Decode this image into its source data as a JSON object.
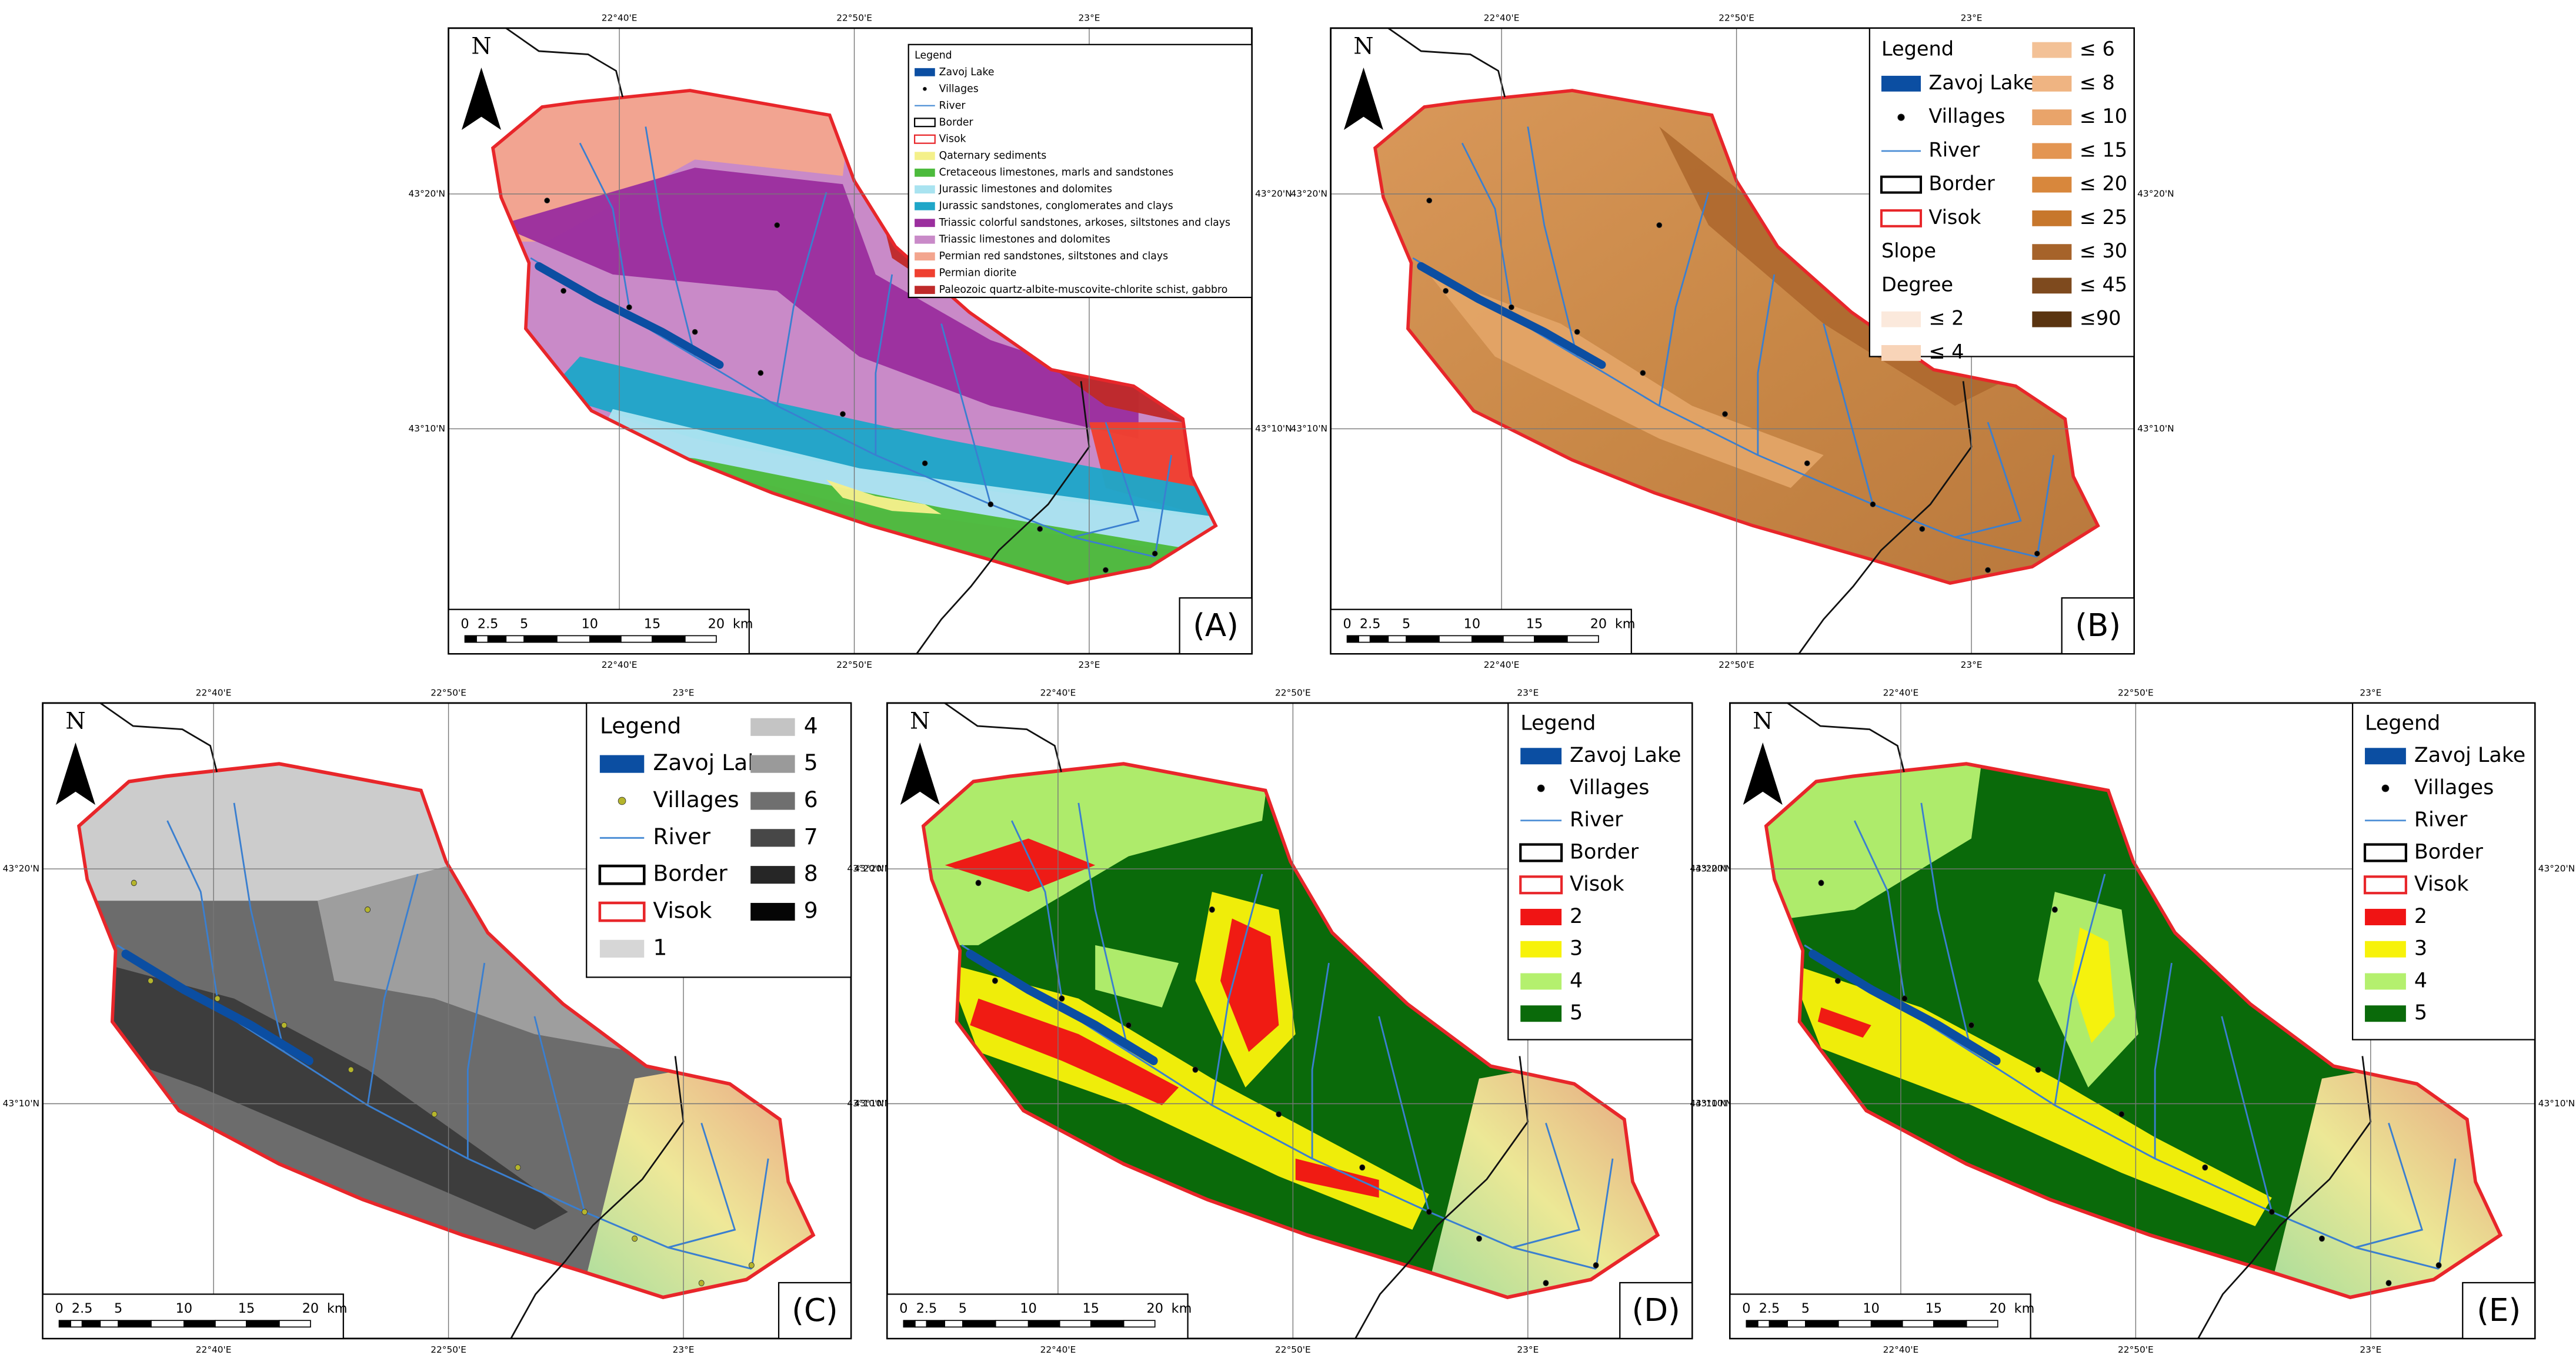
{
  "panels": [
    {
      "label": "(A)",
      "north": "N",
      "lon_labels": [
        "22°40'E",
        "22°50'E",
        "23°E"
      ],
      "lat_labels": [
        "43°20'N",
        "43°10'N"
      ],
      "scale": [
        "0",
        "2.5",
        "5",
        "10",
        "15",
        "20",
        "km"
      ],
      "legend": {
        "title": "Legend",
        "items": [
          {
            "label": "Zavoj Lake",
            "symbol": "fill",
            "color": "#0b4ea2"
          },
          {
            "label": "Villages",
            "symbol": "dot",
            "color": "#000000"
          },
          {
            "label": "River",
            "symbol": "line",
            "color": "#4d8fd6"
          },
          {
            "label": "Border",
            "symbol": "outline",
            "color": "#000000"
          },
          {
            "label": "Visok",
            "symbol": "outline",
            "color": "#e8262a"
          },
          {
            "label": "Qaternary sediments",
            "symbol": "fill",
            "color": "#f4f08a"
          },
          {
            "label": "Cretaceous limestones, marls and sandstones",
            "symbol": "fill",
            "color": "#4cbb3c"
          },
          {
            "label": "Jurassic limestones and dolomites",
            "symbol": "fill",
            "color": "#a9e3f0"
          },
          {
            "label": "Jurassic sandstones, conglomerates and clays",
            "symbol": "fill",
            "color": "#1fa6c8"
          },
          {
            "label": "Triassic colorful sandstones, arkoses, siltstones and clays",
            "symbol": "fill",
            "color": "#9b2f9e"
          },
          {
            "label": "Triassic limestones and dolomites",
            "symbol": "fill",
            "color": "#c98ac8"
          },
          {
            "label": "Permian red sandstones, siltstones and clays",
            "symbol": "fill",
            "color": "#f3a58e"
          },
          {
            "label": "Permian diorite",
            "symbol": "fill",
            "color": "#ef4030"
          },
          {
            "label": "Paleozoic quartz-albite-muscovite-chlorite schist, gabbro",
            "symbol": "fill",
            "color": "#bf2a2a"
          }
        ]
      }
    },
    {
      "label": "(B)",
      "north": "N",
      "lon_labels": [
        "22°40'E",
        "22°50'E",
        "23°E"
      ],
      "lat_labels": [
        "43°20'N",
        "43°10'N"
      ],
      "scale": [
        "0",
        "2.5",
        "5",
        "10",
        "15",
        "20",
        "km"
      ],
      "legend": {
        "title": "Legend",
        "items": [
          {
            "label": "Zavoj Lake",
            "symbol": "fill",
            "color": "#0b4ea2"
          },
          {
            "label": "Villages",
            "symbol": "dot",
            "color": "#000000"
          },
          {
            "label": "River",
            "symbol": "line",
            "color": "#4d8fd6"
          },
          {
            "label": "Border",
            "symbol": "outline",
            "color": "#000000"
          },
          {
            "label": "Visok",
            "symbol": "outline",
            "color": "#e8262a"
          },
          {
            "label": "Slope",
            "symbol": "none"
          },
          {
            "label": "Degree",
            "symbol": "none"
          },
          {
            "label": "≤ 2",
            "symbol": "fill",
            "color": "#fbe9dc"
          },
          {
            "label": "≤ 4",
            "symbol": "fill",
            "color": "#f8d4b8"
          },
          {
            "label": "≤ 6",
            "symbol": "fill",
            "color": "#f3c196"
          },
          {
            "label": "≤ 8",
            "symbol": "fill",
            "color": "#efb482"
          },
          {
            "label": "≤ 10",
            "symbol": "fill",
            "color": "#e9a46a"
          },
          {
            "label": "≤ 15",
            "symbol": "fill",
            "color": "#e39552"
          },
          {
            "label": "≤ 20",
            "symbol": "fill",
            "color": "#d8873c"
          },
          {
            "label": "≤ 25",
            "symbol": "fill",
            "color": "#c7772c"
          },
          {
            "label": "≤ 30",
            "symbol": "fill",
            "color": "#a6632a"
          },
          {
            "label": "≤ 45",
            "symbol": "fill",
            "color": "#7e4a1e"
          },
          {
            "label": "≤90",
            "symbol": "fill",
            "color": "#5a3410"
          }
        ]
      }
    },
    {
      "label": "(C)",
      "north": "N",
      "lon_labels": [
        "22°40'E",
        "22°50'E",
        "23°E"
      ],
      "lat_labels": [
        "43°20'N",
        "43°10'N"
      ],
      "scale": [
        "0",
        "2.5",
        "5",
        "10",
        "15",
        "20",
        "km"
      ],
      "legend": {
        "title": "Legend",
        "items": [
          {
            "label": "Zavoj Lake",
            "symbol": "fill",
            "color": "#0b4ea2"
          },
          {
            "label": "Villages",
            "symbol": "dot",
            "color": "#b5b52c"
          },
          {
            "label": "River",
            "symbol": "line",
            "color": "#4d8fd6"
          },
          {
            "label": "Border",
            "symbol": "outline",
            "color": "#000000"
          },
          {
            "label": "Visok",
            "symbol": "outline",
            "color": "#e8262a"
          },
          {
            "label": "1",
            "symbol": "fill",
            "color": "#d6d6d6"
          },
          {
            "label": "4",
            "symbol": "fill",
            "color": "#c4c4c4"
          },
          {
            "label": "5",
            "symbol": "fill",
            "color": "#9a9a9a"
          },
          {
            "label": "6",
            "symbol": "fill",
            "color": "#6f6f6f"
          },
          {
            "label": "7",
            "symbol": "fill",
            "color": "#474747"
          },
          {
            "label": "8",
            "symbol": "fill",
            "color": "#262626"
          },
          {
            "label": "9",
            "symbol": "fill",
            "color": "#050505"
          }
        ]
      }
    },
    {
      "label": "(D)",
      "north": "N",
      "lon_labels": [
        "22°40'E",
        "22°50'E",
        "23°E"
      ],
      "lat_labels": [
        "43°20'N",
        "43°10'N"
      ],
      "scale": [
        "0",
        "2.5",
        "5",
        "10",
        "15",
        "20",
        "km"
      ],
      "legend": {
        "title": "Legend",
        "items": [
          {
            "label": "Zavoj Lake",
            "symbol": "fill",
            "color": "#0b4ea2"
          },
          {
            "label": "Villages",
            "symbol": "dot",
            "color": "#000000"
          },
          {
            "label": "River",
            "symbol": "line",
            "color": "#4d8fd6"
          },
          {
            "label": "Border",
            "symbol": "outline",
            "color": "#000000"
          },
          {
            "label": "Visok",
            "symbol": "outline",
            "color": "#e8262a"
          },
          {
            "label": "2",
            "symbol": "fill",
            "color": "#f01414"
          },
          {
            "label": "3",
            "symbol": "fill",
            "color": "#f7f20a"
          },
          {
            "label": "4",
            "symbol": "fill",
            "color": "#b4f06e"
          },
          {
            "label": "5",
            "symbol": "fill",
            "color": "#0a6a0a"
          }
        ]
      }
    },
    {
      "label": "(E)",
      "north": "N",
      "lon_labels": [
        "22°40'E",
        "22°50'E",
        "23°E"
      ],
      "lat_labels": [
        "43°20'N",
        "43°10'N"
      ],
      "scale": [
        "0",
        "2.5",
        "5",
        "10",
        "15",
        "20",
        "km"
      ],
      "legend": {
        "title": "Legend",
        "items": [
          {
            "label": "Zavoj Lake",
            "symbol": "fill",
            "color": "#0b4ea2"
          },
          {
            "label": "Villages",
            "symbol": "dot",
            "color": "#000000"
          },
          {
            "label": "River",
            "symbol": "line",
            "color": "#4d8fd6"
          },
          {
            "label": "Border",
            "symbol": "outline",
            "color": "#000000"
          },
          {
            "label": "Visok",
            "symbol": "outline",
            "color": "#e8262a"
          },
          {
            "label": "2",
            "symbol": "fill",
            "color": "#f01414"
          },
          {
            "label": "3",
            "symbol": "fill",
            "color": "#f7f20a"
          },
          {
            "label": "4",
            "symbol": "fill",
            "color": "#b4f06e"
          },
          {
            "label": "5",
            "symbol": "fill",
            "color": "#0a6a0a"
          }
        ]
      }
    }
  ]
}
